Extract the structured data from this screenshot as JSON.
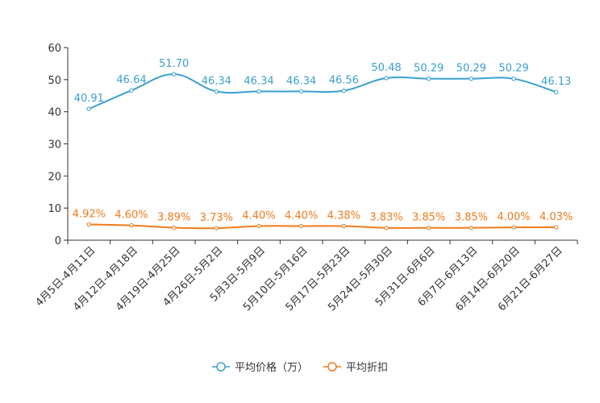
{
  "chart_data": {
    "type": "line",
    "title": "",
    "xlabel": "",
    "ylabel": "",
    "ylim": [
      0,
      60
    ],
    "yticks": [
      0,
      10,
      20,
      30,
      40,
      50,
      60
    ],
    "grid": false,
    "legend_position": "bottom-center",
    "categories": [
      "4月5日-4月11日",
      "4月12日-4月18日",
      "4月19日-4月25日",
      "4月26日-5月2日",
      "5月3日-5月9日",
      "5月10日-5月16日",
      "5月17日-5月23日",
      "5月24日-5月30日",
      "5月31日-6月6日",
      "6月7日-6月13日",
      "6月14日-6月20日",
      "6月21日-6月27日"
    ],
    "series": [
      {
        "name": "平均价格（万）",
        "color": "#3a9fd1",
        "values": [
          40.91,
          46.64,
          51.7,
          46.34,
          46.34,
          46.34,
          46.56,
          50.48,
          50.29,
          50.29,
          50.29,
          46.13
        ],
        "labels": [
          "40.91",
          "46.64",
          "51.70",
          "46.34",
          "46.34",
          "46.34",
          "46.56",
          "50.48",
          "50.29",
          "50.29",
          "50.29",
          "46.13"
        ]
      },
      {
        "name": "平均折扣",
        "color": "#f07a1a",
        "values": [
          4.92,
          4.6,
          3.89,
          3.73,
          4.4,
          4.4,
          4.38,
          3.83,
          3.85,
          3.85,
          4.0,
          4.03
        ],
        "labels": [
          "4.92%",
          "4.60%",
          "3.89%",
          "3.73%",
          "4.40%",
          "4.40%",
          "4.38%",
          "3.83%",
          "3.85%",
          "3.85%",
          "4.00%",
          "4.03%"
        ]
      }
    ]
  }
}
